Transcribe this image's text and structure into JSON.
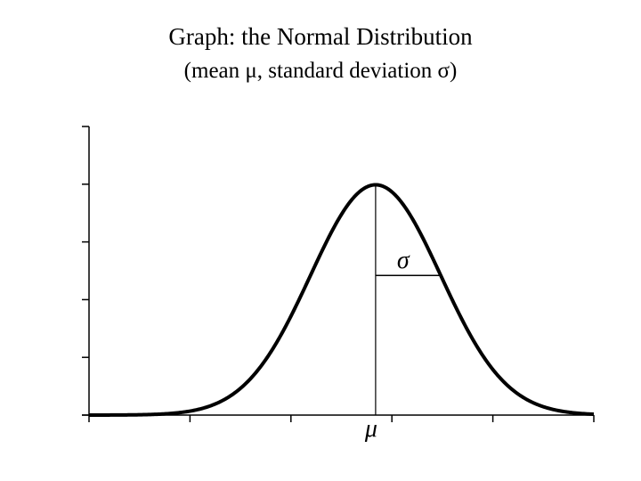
{
  "chart_data": {
    "type": "line",
    "title": "Graph: the Normal Distribution",
    "subtitle": "(mean μ, standard deviation σ)",
    "series": [
      {
        "mean": 0,
        "sd": 1
      }
    ],
    "xlim": [
      -4.4,
      3.35
    ],
    "ylim": [
      0,
      0.5
    ],
    "x_ticks": [
      -4.4,
      -2.85,
      -1.3,
      0.25,
      1.8,
      3.35
    ],
    "y_ticks": [
      0,
      0.1,
      0.2,
      0.3,
      0.4,
      0.5
    ],
    "annotations": {
      "mean_label": "μ",
      "sd_label": "σ"
    },
    "grid": false,
    "colors": {
      "curve": "#000000",
      "axis": "#000000",
      "background": "#ffffff"
    }
  }
}
